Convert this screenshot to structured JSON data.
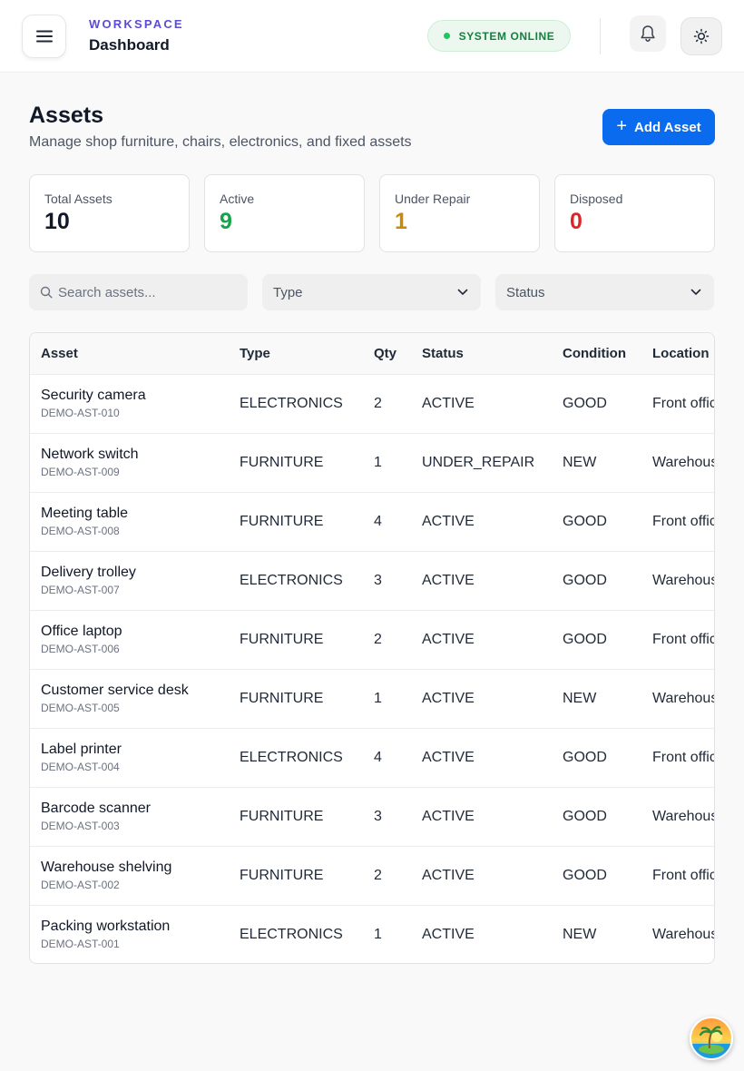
{
  "header": {
    "eyebrow": "WORKSPACE",
    "title": "Dashboard",
    "status": "SYSTEM ONLINE"
  },
  "page": {
    "title": "Assets",
    "subtitle": "Manage shop furniture, chairs, electronics, and fixed assets",
    "add_button": "Add Asset"
  },
  "stats": [
    {
      "label": "Total Assets",
      "value": "10",
      "color": "#111827"
    },
    {
      "label": "Active",
      "value": "9",
      "color": "#16a34a"
    },
    {
      "label": "Under Repair",
      "value": "1",
      "color": "#ca8a04"
    },
    {
      "label": "Disposed",
      "value": "0",
      "color": "#dc2626"
    }
  ],
  "filters": {
    "search_placeholder": "Search assets...",
    "type_label": "Type",
    "status_label": "Status"
  },
  "table": {
    "columns": [
      "Asset",
      "Type",
      "Qty",
      "Status",
      "Condition",
      "Location"
    ],
    "rows": [
      {
        "name": "Security camera",
        "code": "DEMO-AST-010",
        "type": "ELECTRONICS",
        "qty": "2",
        "status": "ACTIVE",
        "condition": "GOOD",
        "location": "Front office"
      },
      {
        "name": "Network switch",
        "code": "DEMO-AST-009",
        "type": "FURNITURE",
        "qty": "1",
        "status": "UNDER_REPAIR",
        "condition": "NEW",
        "location": "Warehouse"
      },
      {
        "name": "Meeting table",
        "code": "DEMO-AST-008",
        "type": "FURNITURE",
        "qty": "4",
        "status": "ACTIVE",
        "condition": "GOOD",
        "location": "Front office"
      },
      {
        "name": "Delivery trolley",
        "code": "DEMO-AST-007",
        "type": "ELECTRONICS",
        "qty": "3",
        "status": "ACTIVE",
        "condition": "GOOD",
        "location": "Warehouse"
      },
      {
        "name": "Office laptop",
        "code": "DEMO-AST-006",
        "type": "FURNITURE",
        "qty": "2",
        "status": "ACTIVE",
        "condition": "GOOD",
        "location": "Front office"
      },
      {
        "name": "Customer service desk",
        "code": "DEMO-AST-005",
        "type": "FURNITURE",
        "qty": "1",
        "status": "ACTIVE",
        "condition": "NEW",
        "location": "Warehouse"
      },
      {
        "name": "Label printer",
        "code": "DEMO-AST-004",
        "type": "ELECTRONICS",
        "qty": "4",
        "status": "ACTIVE",
        "condition": "GOOD",
        "location": "Front office"
      },
      {
        "name": "Barcode scanner",
        "code": "DEMO-AST-003",
        "type": "FURNITURE",
        "qty": "3",
        "status": "ACTIVE",
        "condition": "GOOD",
        "location": "Warehouse"
      },
      {
        "name": "Warehouse shelving",
        "code": "DEMO-AST-002",
        "type": "FURNITURE",
        "qty": "2",
        "status": "ACTIVE",
        "condition": "GOOD",
        "location": "Front office"
      },
      {
        "name": "Packing workstation",
        "code": "DEMO-AST-001",
        "type": "ELECTRONICS",
        "qty": "1",
        "status": "ACTIVE",
        "condition": "NEW",
        "location": "Warehouse"
      }
    ]
  },
  "icons": {
    "menu": "hamburger-menu-icon",
    "bell": "bell-icon",
    "theme": "sun-icon",
    "search": "search-icon",
    "chevron": "chevron-down-icon",
    "avatar": "tropical-island-avatar"
  },
  "colors": {
    "accent": "#0b6bef",
    "brand": "#5b4bd6",
    "online": "#22c55e"
  }
}
